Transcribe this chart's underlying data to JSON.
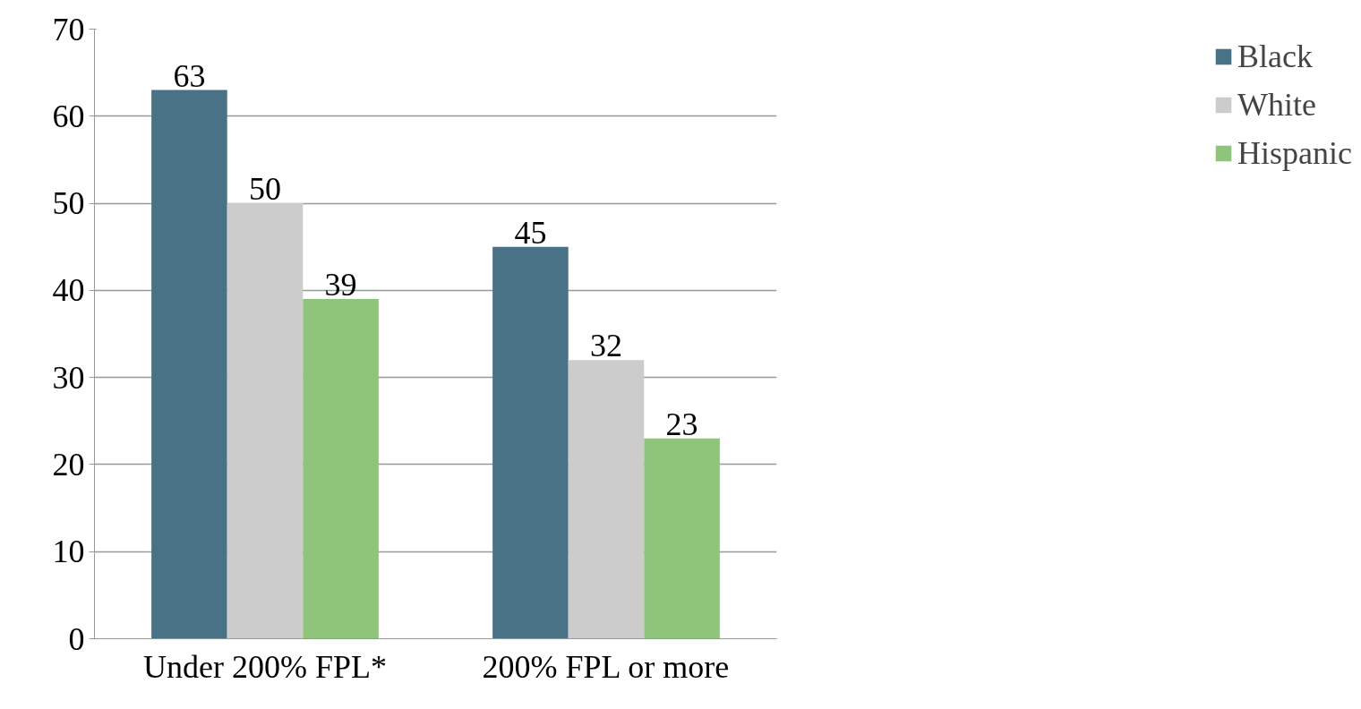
{
  "chart_data": {
    "type": "bar",
    "categories": [
      "Under 200% FPL*",
      "200% FPL or more"
    ],
    "series": [
      {
        "name": "Black",
        "color": "#4a7286",
        "values": [
          63,
          45
        ]
      },
      {
        "name": "White",
        "color": "#cccccc",
        "values": [
          50,
          32
        ]
      },
      {
        "name": "Hispanic",
        "color": "#8fc57a",
        "values": [
          39,
          23
        ]
      }
    ],
    "ylim": [
      0,
      70
    ],
    "yticks": [
      0,
      10,
      20,
      30,
      40,
      50,
      60,
      70
    ],
    "grid": "y",
    "legend": "right",
    "data_labels": true
  }
}
